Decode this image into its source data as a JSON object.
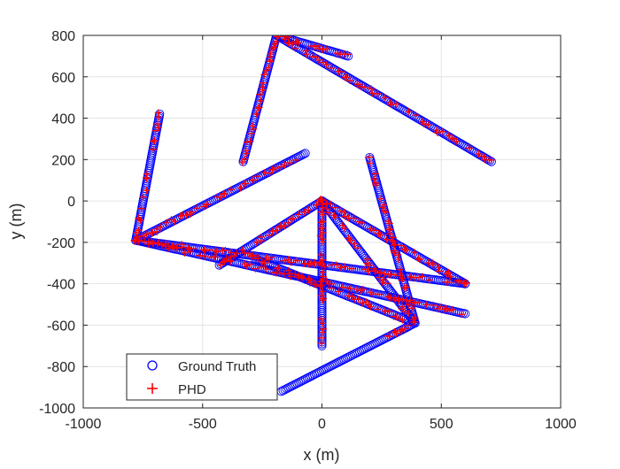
{
  "chart_data": {
    "type": "scatter",
    "xlabel": "x (m)",
    "ylabel": "y (m)",
    "xlim": [
      -1000,
      1000
    ],
    "ylim": [
      -1000,
      800
    ],
    "xticks": [
      -1000,
      -500,
      0,
      500,
      1000
    ],
    "yticks": [
      -1000,
      -800,
      -600,
      -400,
      -200,
      0,
      200,
      400,
      600,
      800
    ],
    "grid": true,
    "legend": {
      "placement": "bottom-left"
    },
    "series": [
      {
        "name": "Ground Truth",
        "marker": "circle-open",
        "color": "#0000ff",
        "tracks": [
          {
            "from": [
              -330,
              190
            ],
            "to": [
              -190,
              800
            ]
          },
          {
            "from": [
              -190,
              800
            ],
            "to": [
              110,
              700
            ]
          },
          {
            "from": [
              -190,
              800
            ],
            "to": [
              710,
              190
            ]
          },
          {
            "from": [
              -680,
              420
            ],
            "to": [
              -780,
              -190
            ]
          },
          {
            "from": [
              -780,
              -190
            ],
            "to": [
              -70,
              230
            ]
          },
          {
            "from": [
              -780,
              -190
            ],
            "to": [
              600,
              -400
            ]
          },
          {
            "from": [
              -780,
              -190
            ],
            "to": [
              600,
              -545
            ]
          },
          {
            "from": [
              200,
              210
            ],
            "to": [
              390,
              -590
            ]
          },
          {
            "from": [
              0,
              0
            ],
            "to": [
              -430,
              -310
            ]
          },
          {
            "from": [
              0,
              0
            ],
            "to": [
              600,
              -400
            ]
          },
          {
            "from": [
              0,
              0
            ],
            "to": [
              0,
              -700
            ]
          },
          {
            "from": [
              0,
              0
            ],
            "to": [
              390,
              -590
            ]
          },
          {
            "from": [
              -280,
              -280
            ],
            "to": [
              390,
              -590
            ]
          },
          {
            "from": [
              390,
              -590
            ],
            "to": [
              -170,
              -920
            ]
          }
        ]
      },
      {
        "name": "PHD",
        "marker": "plus",
        "color": "#ff0000",
        "tracks": [
          {
            "from": [
              -330,
              190
            ],
            "to": [
              -190,
              800
            ]
          },
          {
            "from": [
              -190,
              800
            ],
            "to": [
              110,
              700
            ]
          },
          {
            "from": [
              -190,
              800
            ],
            "to": [
              710,
              190
            ]
          },
          {
            "from": [
              -680,
              420
            ],
            "to": [
              -780,
              -190
            ]
          },
          {
            "from": [
              -780,
              -190
            ],
            "to": [
              -70,
              230
            ]
          },
          {
            "from": [
              -780,
              -190
            ],
            "to": [
              600,
              -400
            ]
          },
          {
            "from": [
              -780,
              -190
            ],
            "to": [
              600,
              -545
            ]
          },
          {
            "from": [
              200,
              210
            ],
            "to": [
              390,
              -590
            ]
          },
          {
            "from": [
              0,
              0
            ],
            "to": [
              -430,
              -310
            ]
          },
          {
            "from": [
              0,
              0
            ],
            "to": [
              600,
              -400
            ]
          },
          {
            "from": [
              0,
              0
            ],
            "to": [
              0,
              -700
            ]
          },
          {
            "from": [
              0,
              0
            ],
            "to": [
              390,
              -590
            ]
          },
          {
            "from": [
              -280,
              -280
            ],
            "to": [
              390,
              -590
            ]
          },
          {
            "from": [
              390,
              -590
            ],
            "to": [
              270,
              -660
            ]
          }
        ]
      }
    ]
  }
}
